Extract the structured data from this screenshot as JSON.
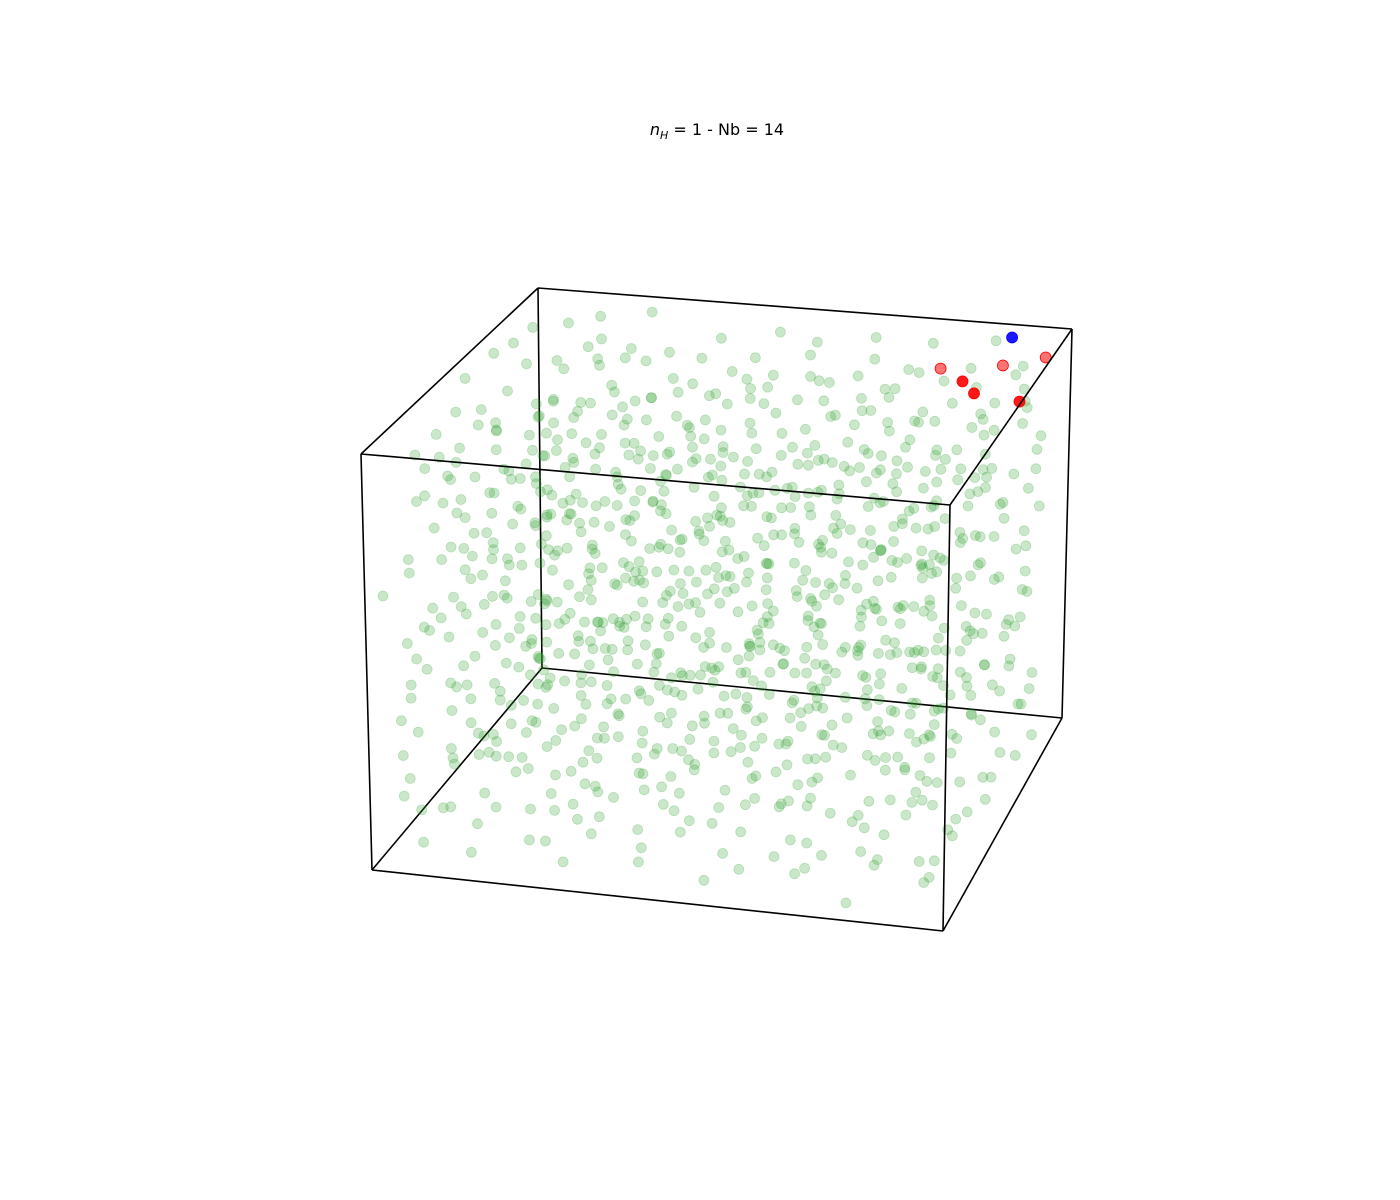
{
  "chart_data": {
    "type": "scatter",
    "projection": "3d",
    "title": {
      "var_base": "n",
      "var_sub": "H",
      "rest": " = 1 - Nb = 14"
    },
    "xlabel": "",
    "ylabel": "",
    "zlabel": "",
    "grid": false,
    "axes_visible": false,
    "xlim": [
      0,
      1
    ],
    "ylim": [
      0,
      1
    ],
    "zlim": [
      0,
      1
    ],
    "lattice_points_per_axis": 10,
    "colors": {
      "lattice": "#2ca02c",
      "red": "#ff0000",
      "blue": "#0000ff",
      "edge": "#000000"
    },
    "series": [
      {
        "role": "lattice",
        "color": "green",
        "alpha": 0.25,
        "generator": "jittered-grid"
      },
      {
        "role": "highlight-red",
        "color": "red",
        "points": [
          [
            0.78,
            0.9,
            0.92
          ],
          [
            0.84,
            0.82,
            0.93
          ],
          [
            0.9,
            0.88,
            0.95
          ],
          [
            0.95,
            0.8,
            0.9
          ],
          [
            0.97,
            0.92,
            0.96
          ],
          [
            0.88,
            0.74,
            0.94
          ]
        ]
      },
      {
        "role": "highlight-blue",
        "color": "blue",
        "points": [
          [
            0.9,
            0.95,
            0.99
          ]
        ]
      }
    ]
  }
}
